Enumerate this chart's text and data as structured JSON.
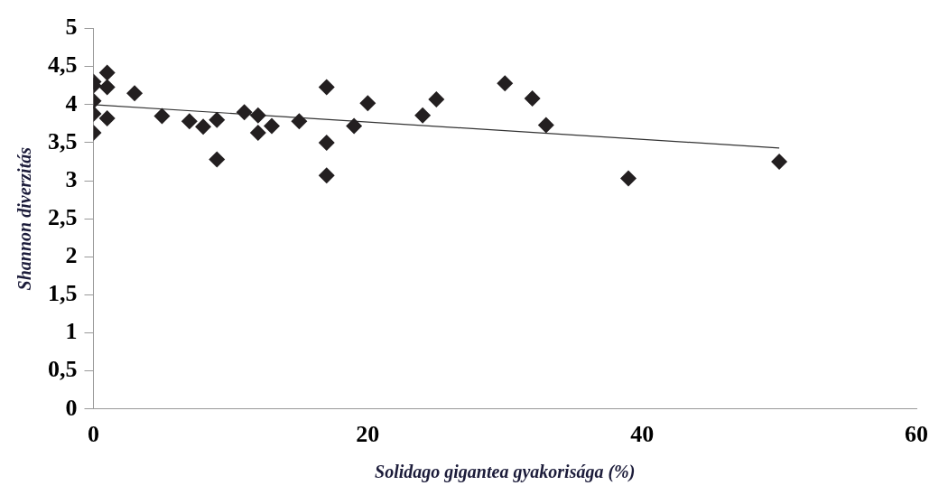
{
  "chart_data": {
    "type": "scatter",
    "xlabel": "Solidago gigantea gyakorisága (%)",
    "ylabel": "Shannon diverzitás",
    "xlim": [
      0,
      60
    ],
    "xticks": [
      0,
      20,
      40,
      60
    ],
    "ylim": [
      0,
      5
    ],
    "yticks": [
      0,
      {
        "value": 0.5,
        "label": "0,5"
      },
      1,
      {
        "value": 1.5,
        "label": "1,5"
      },
      2,
      {
        "value": 2.5,
        "label": "2,5"
      },
      3,
      {
        "value": 3.5,
        "label": "3,5"
      },
      4,
      {
        "value": 4.5,
        "label": "4,5"
      },
      5
    ],
    "grid": false,
    "legend": false,
    "marker": "diamond",
    "series": [
      {
        "type": "scatter",
        "color": "#231f20",
        "x": [
          0,
          0,
          0,
          0,
          0,
          1,
          1,
          1,
          3,
          5,
          7,
          8,
          9,
          9,
          11,
          12,
          12,
          13,
          15,
          17,
          17,
          17,
          19,
          20,
          24,
          25,
          30,
          32,
          33,
          39,
          50
        ],
        "values": [
          4.3,
          4.25,
          4.05,
          3.88,
          3.63,
          4.42,
          4.23,
          3.82,
          4.15,
          3.85,
          3.78,
          3.71,
          3.8,
          3.28,
          3.9,
          3.86,
          3.63,
          3.72,
          3.78,
          4.23,
          3.5,
          3.07,
          3.72,
          4.02,
          3.86,
          4.07,
          4.28,
          4.08,
          3.73,
          3.03,
          3.25
        ]
      },
      {
        "type": "line",
        "color": "#333333",
        "marker": "none",
        "x": [
          0,
          50
        ],
        "values": [
          4.0,
          3.43
        ]
      }
    ]
  }
}
